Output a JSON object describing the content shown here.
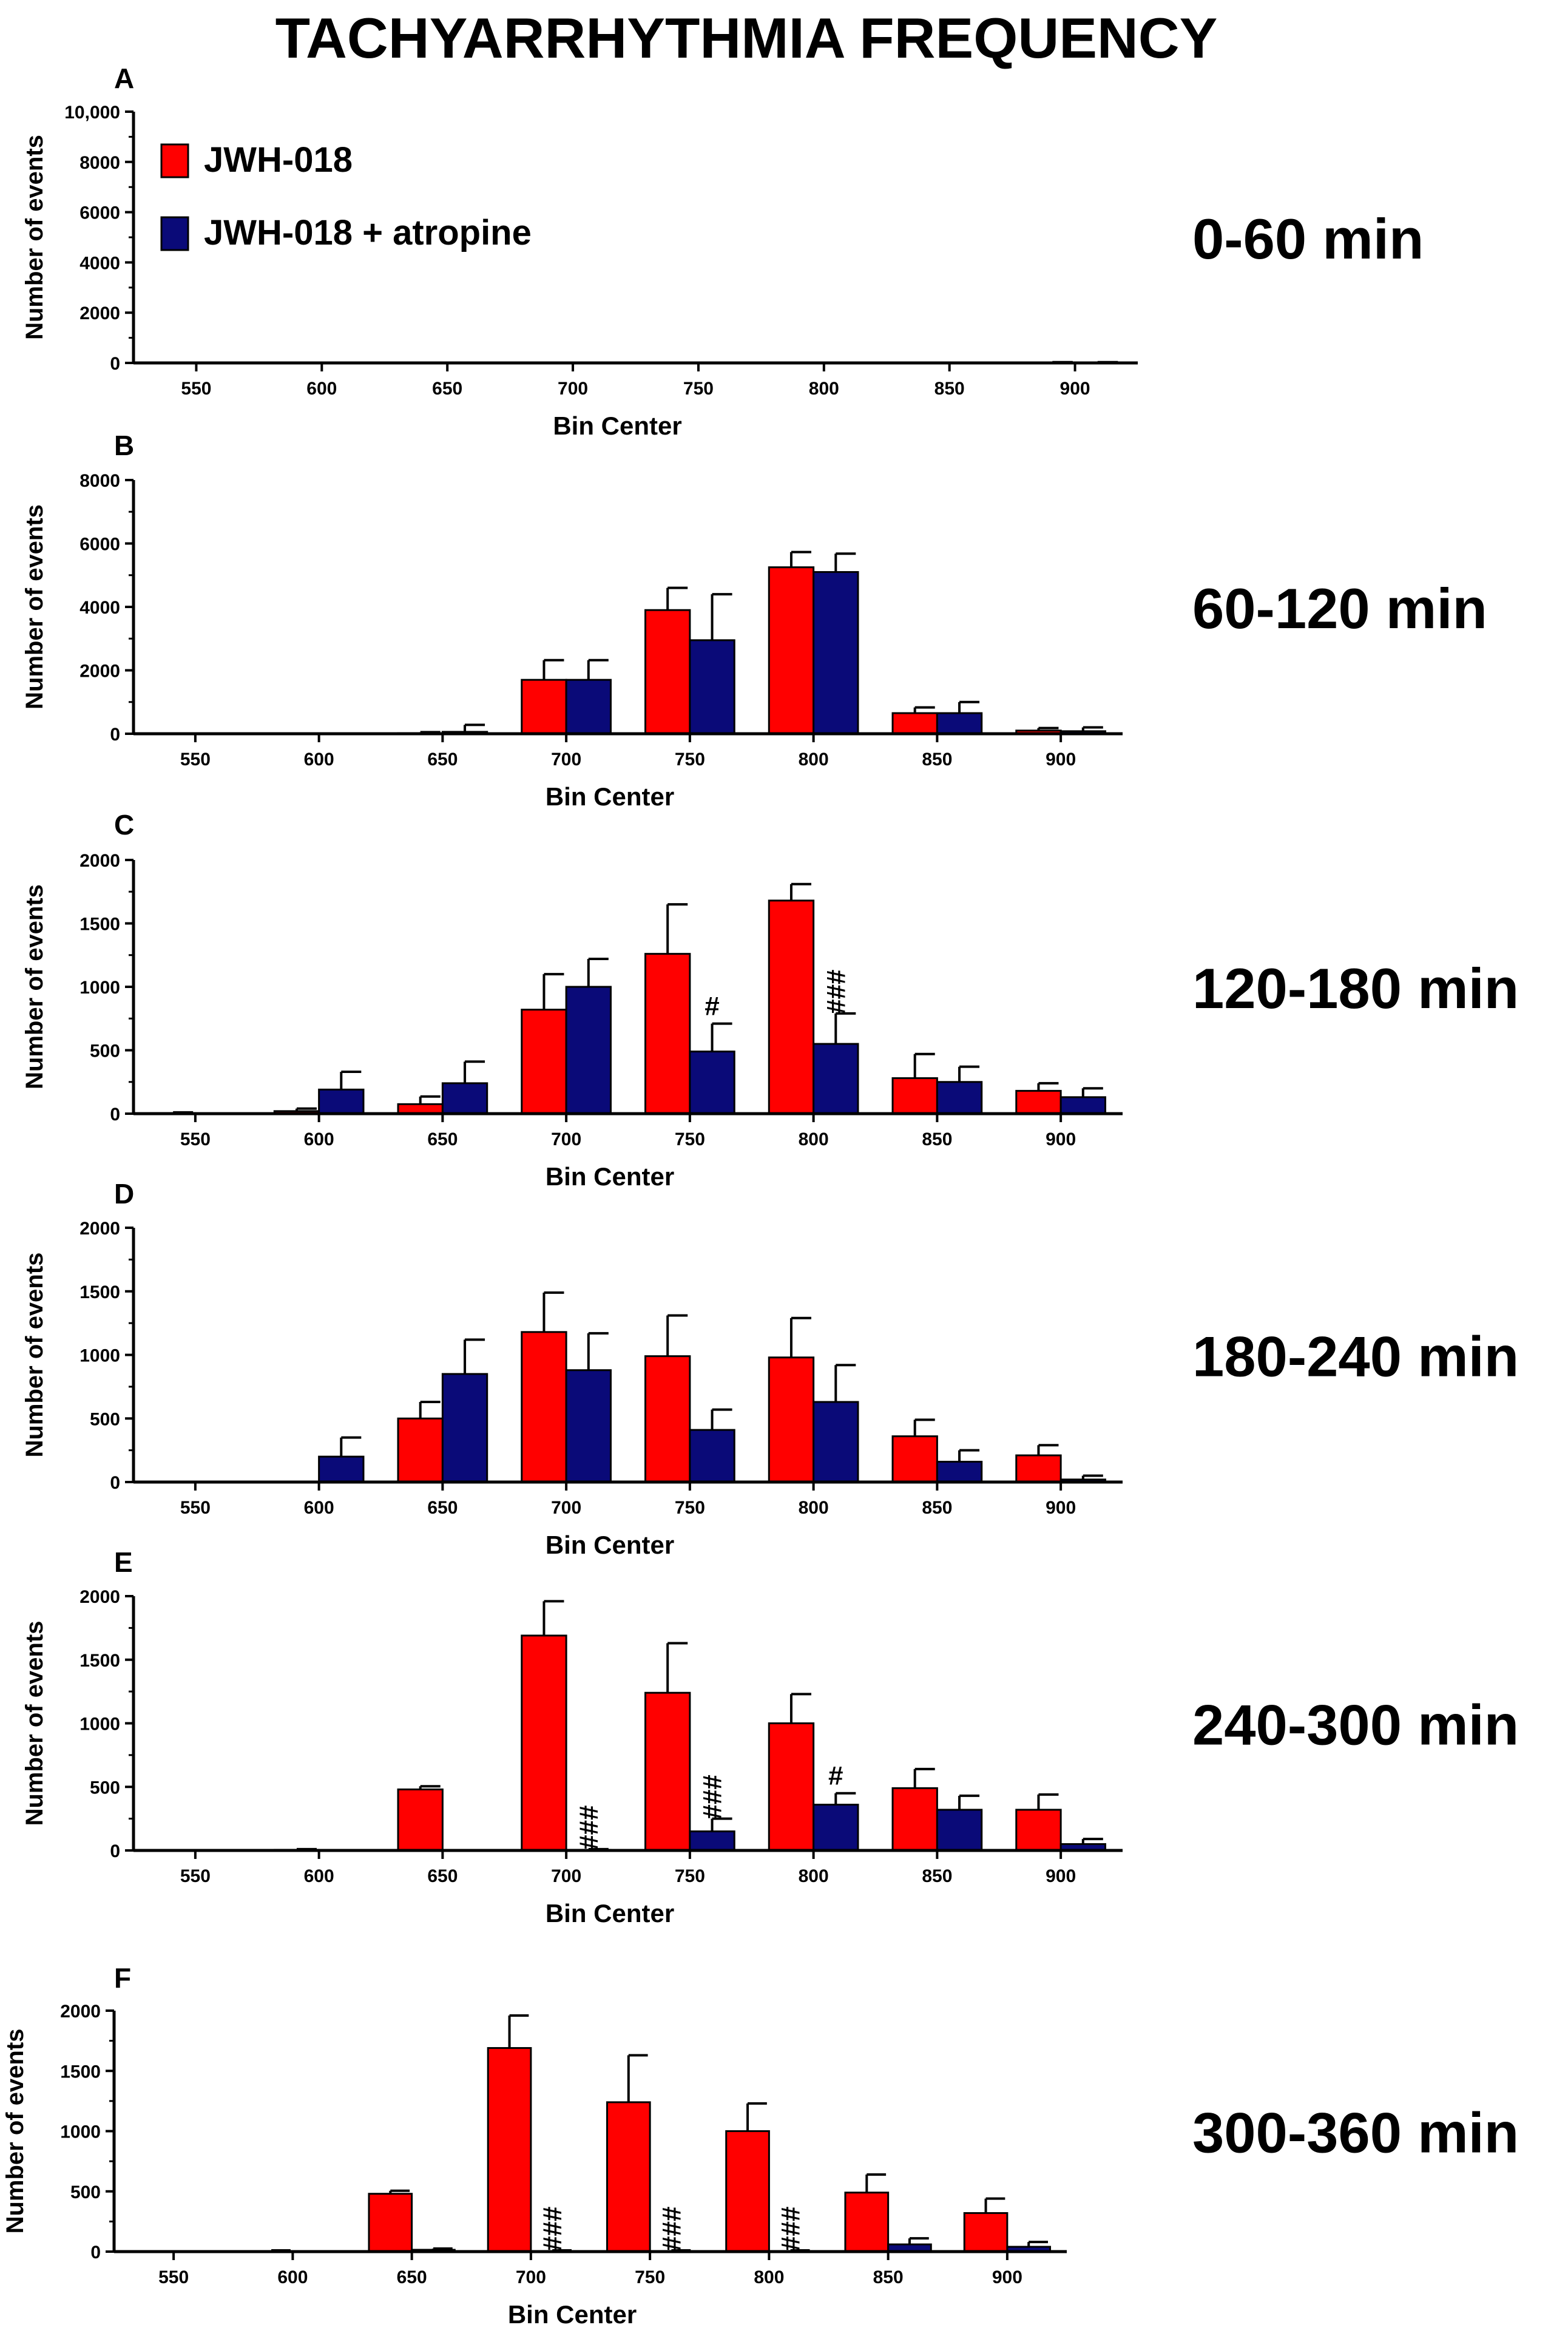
{
  "title": "TACHYARRHYTHMIA FREQUENCY",
  "legend": [
    {
      "label": "JWH-018",
      "color": "#ff0000"
    },
    {
      "label": "JWH-018 + atropine",
      "color": "#0a0a78"
    }
  ],
  "colors": {
    "jwh": "#ff0000",
    "atropine": "#0a0a78",
    "axis": "#000000"
  },
  "chart_data": [
    {
      "panel": "A",
      "type": "bar",
      "time_label": "0-60 min",
      "xlabel": "Bin Center",
      "ylabel": "Number of events",
      "ylim": [
        0,
        10000
      ],
      "yticks": [
        0,
        2000,
        4000,
        6000,
        8000,
        10000
      ],
      "ytick_labels": [
        "0",
        "2000",
        "4000",
        "6000",
        "8000",
        "10,000"
      ],
      "categories": [
        550,
        600,
        650,
        700,
        750,
        800,
        850,
        900
      ],
      "series": [
        {
          "name": "JWH-018",
          "values": [
            0,
            0,
            0,
            0,
            0,
            0,
            0,
            10
          ],
          "errors": [
            0,
            0,
            0,
            0,
            0,
            0,
            0,
            20
          ],
          "annotations": [
            "",
            "",
            "",
            "",
            "",
            "",
            "",
            ""
          ]
        },
        {
          "name": "JWH-018 + atropine",
          "values": [
            0,
            0,
            0,
            0,
            0,
            0,
            0,
            10
          ],
          "errors": [
            0,
            0,
            0,
            0,
            0,
            0,
            0,
            20
          ],
          "annotations": [
            "",
            "",
            "",
            "",
            "",
            "",
            "",
            ""
          ]
        }
      ]
    },
    {
      "panel": "B",
      "type": "bar",
      "time_label": "60-120 min",
      "xlabel": "Bin Center",
      "ylabel": "Number of events",
      "ylim": [
        0,
        8000
      ],
      "yticks": [
        0,
        2000,
        4000,
        6000,
        8000
      ],
      "ytick_labels": [
        "0",
        "2000",
        "4000",
        "6000",
        "8000"
      ],
      "categories": [
        550,
        600,
        650,
        700,
        750,
        800,
        850,
        900
      ],
      "series": [
        {
          "name": "JWH-018",
          "values": [
            0,
            0,
            20,
            1700,
            3900,
            5250,
            650,
            100
          ],
          "errors": [
            0,
            0,
            30,
            620,
            700,
            480,
            180,
            80
          ],
          "annotations": [
            "",
            "",
            "",
            "",
            "",
            "",
            "",
            ""
          ]
        },
        {
          "name": "JWH-018 + atropine",
          "values": [
            0,
            0,
            60,
            1700,
            2950,
            5100,
            650,
            80
          ],
          "errors": [
            0,
            0,
            220,
            620,
            1450,
            580,
            350,
            120
          ],
          "annotations": [
            "",
            "",
            "",
            "",
            "",
            "",
            "",
            ""
          ]
        }
      ]
    },
    {
      "panel": "C",
      "type": "bar",
      "time_label": "120-180 min",
      "xlabel": "Bin Center",
      "ylabel": "Number of events",
      "ylim": [
        0,
        2000
      ],
      "yticks": [
        0,
        500,
        1000,
        1500,
        2000
      ],
      "ytick_labels": [
        "0",
        "500",
        "1000",
        "1500",
        "2000"
      ],
      "categories": [
        550,
        600,
        650,
        700,
        750,
        800,
        850,
        900
      ],
      "series": [
        {
          "name": "JWH-018",
          "values": [
            5,
            20,
            75,
            820,
            1260,
            1680,
            280,
            180
          ],
          "errors": [
            5,
            20,
            60,
            280,
            390,
            130,
            190,
            60
          ],
          "annotations": [
            "",
            "",
            "",
            "",
            "",
            "",
            "",
            ""
          ]
        },
        {
          "name": "JWH-018 + atropine",
          "values": [
            0,
            190,
            240,
            1000,
            490,
            550,
            250,
            130
          ],
          "errors": [
            0,
            140,
            170,
            220,
            220,
            240,
            120,
            70
          ],
          "annotations": [
            "",
            "",
            "",
            "",
            "#",
            "###",
            "",
            ""
          ]
        }
      ]
    },
    {
      "panel": "D",
      "type": "bar",
      "time_label": "180-240 min",
      "xlabel": "Bin Center",
      "ylabel": "Number of events",
      "ylim": [
        0,
        2000
      ],
      "yticks": [
        0,
        500,
        1000,
        1500,
        2000
      ],
      "ytick_labels": [
        "0",
        "500",
        "1000",
        "1500",
        "2000"
      ],
      "categories": [
        550,
        600,
        650,
        700,
        750,
        800,
        850,
        900
      ],
      "series": [
        {
          "name": "JWH-018",
          "values": [
            0,
            0,
            500,
            1180,
            990,
            980,
            360,
            210
          ],
          "errors": [
            0,
            0,
            130,
            310,
            320,
            310,
            130,
            80
          ],
          "annotations": [
            "",
            "",
            "",
            "",
            "",
            "",
            "",
            ""
          ]
        },
        {
          "name": "JWH-018 + atropine",
          "values": [
            0,
            200,
            850,
            880,
            410,
            630,
            160,
            20
          ],
          "errors": [
            0,
            150,
            270,
            290,
            160,
            290,
            90,
            30
          ],
          "annotations": [
            "",
            "",
            "",
            "",
            "",
            "",
            "",
            ""
          ]
        }
      ]
    },
    {
      "panel": "E",
      "type": "bar",
      "time_label": "240-300 min",
      "xlabel": "Bin Center",
      "ylabel": "Number of events",
      "ylim": [
        0,
        2000
      ],
      "yticks": [
        0,
        500,
        1000,
        1500,
        2000
      ],
      "ytick_labels": [
        "0",
        "500",
        "1000",
        "1500",
        "2000"
      ],
      "categories": [
        550,
        600,
        650,
        700,
        750,
        800,
        850,
        900
      ],
      "series": [
        {
          "name": "JWH-018",
          "values": [
            0,
            5,
            480,
            1690,
            1240,
            1000,
            490,
            320
          ],
          "errors": [
            0,
            5,
            25,
            270,
            390,
            230,
            150,
            120
          ],
          "annotations": [
            "",
            "",
            "",
            "",
            "",
            "",
            "",
            ""
          ]
        },
        {
          "name": "JWH-018 + atropine",
          "values": [
            0,
            0,
            0,
            5,
            150,
            360,
            320,
            50
          ],
          "errors": [
            0,
            0,
            0,
            5,
            100,
            90,
            110,
            40
          ],
          "annotations": [
            "",
            "",
            "",
            "###",
            "###",
            "#",
            "",
            ""
          ]
        }
      ]
    },
    {
      "panel": "F",
      "type": "bar",
      "time_label": "300-360 min",
      "xlabel": "Bin Center",
      "ylabel": "Number of events",
      "ylim": [
        0,
        2000
      ],
      "yticks": [
        0,
        500,
        1000,
        1500,
        2000
      ],
      "ytick_labels": [
        "0",
        "500",
        "1000",
        "1500",
        "2000"
      ],
      "categories": [
        550,
        600,
        650,
        700,
        750,
        800,
        850,
        900
      ],
      "series": [
        {
          "name": "JWH-018",
          "values": [
            0,
            5,
            480,
            1690,
            1240,
            1000,
            490,
            320
          ],
          "errors": [
            0,
            5,
            25,
            270,
            390,
            230,
            150,
            120
          ],
          "annotations": [
            "",
            "",
            "",
            "",
            "",
            "",
            "",
            ""
          ]
        },
        {
          "name": "JWH-018 + atropine",
          "values": [
            0,
            0,
            15,
            5,
            5,
            5,
            60,
            40
          ],
          "errors": [
            0,
            0,
            10,
            5,
            5,
            5,
            50,
            40
          ],
          "annotations": [
            "",
            "",
            "",
            "###",
            "###",
            "###",
            "",
            ""
          ]
        }
      ]
    }
  ]
}
